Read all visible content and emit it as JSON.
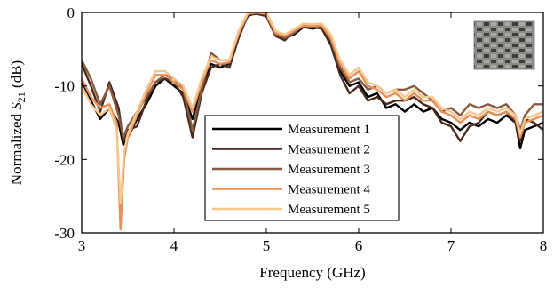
{
  "chart_data": {
    "type": "line",
    "xlabel": "Frequency (GHz)",
    "ylabel_main": "Normalized ",
    "ylabel_symbol": "S",
    "ylabel_subscript": "21",
    "ylabel_unit": " (dB)",
    "xlim": [
      3,
      8
    ],
    "ylim": [
      -30,
      0
    ],
    "xticks": [
      3,
      4,
      5,
      6,
      7,
      8
    ],
    "yticks": [
      0,
      -10,
      -20,
      -30
    ],
    "grid": false,
    "legend_position": "bottom-center",
    "inset_image": "woven-fabric-sample-photo",
    "series": [
      {
        "name": "Measurement 1",
        "color": "#000000",
        "points": [
          [
            3,
            -9.5
          ],
          [
            3.1,
            -12
          ],
          [
            3.2,
            -14.5
          ],
          [
            3.3,
            -13
          ],
          [
            3.4,
            -15
          ],
          [
            3.45,
            -18
          ],
          [
            3.5,
            -17
          ],
          [
            3.6,
            -14.5
          ],
          [
            3.7,
            -12.5
          ],
          [
            3.8,
            -10
          ],
          [
            3.9,
            -9
          ],
          [
            4.0,
            -10
          ],
          [
            4.1,
            -11
          ],
          [
            4.2,
            -14.5
          ],
          [
            4.3,
            -10
          ],
          [
            4.4,
            -7
          ],
          [
            4.5,
            -7.5
          ],
          [
            4.6,
            -7
          ],
          [
            4.7,
            -3
          ],
          [
            4.8,
            -0.5
          ],
          [
            4.9,
            0
          ],
          [
            5.0,
            -0.2
          ],
          [
            5.1,
            -3
          ],
          [
            5.2,
            -3.5
          ],
          [
            5.3,
            -3
          ],
          [
            5.4,
            -2
          ],
          [
            5.5,
            -2.2
          ],
          [
            5.6,
            -2
          ],
          [
            5.7,
            -4
          ],
          [
            5.8,
            -8
          ],
          [
            5.9,
            -10
          ],
          [
            6.0,
            -9.5
          ],
          [
            6.1,
            -11.5
          ],
          [
            6.2,
            -11
          ],
          [
            6.3,
            -13
          ],
          [
            6.4,
            -12.5
          ],
          [
            6.5,
            -13.5
          ],
          [
            6.6,
            -12.5
          ],
          [
            6.7,
            -13.5
          ],
          [
            6.8,
            -13
          ],
          [
            6.9,
            -14.5
          ],
          [
            7.0,
            -15
          ],
          [
            7.1,
            -16
          ],
          [
            7.2,
            -15
          ],
          [
            7.3,
            -15.5
          ],
          [
            7.4,
            -14.5
          ],
          [
            7.5,
            -15
          ],
          [
            7.6,
            -14
          ],
          [
            7.7,
            -15
          ],
          [
            7.75,
            -18.5
          ],
          [
            7.8,
            -16
          ],
          [
            7.9,
            -15.5
          ],
          [
            8.0,
            -15
          ]
        ]
      },
      {
        "name": "Measurement 2",
        "color": "#4a2a1c",
        "points": [
          [
            3,
            -7
          ],
          [
            3.1,
            -10
          ],
          [
            3.2,
            -13.5
          ],
          [
            3.3,
            -9.5
          ],
          [
            3.4,
            -13
          ],
          [
            3.45,
            -17.5
          ],
          [
            3.5,
            -16
          ],
          [
            3.6,
            -15.5
          ],
          [
            3.7,
            -12
          ],
          [
            3.8,
            -9.5
          ],
          [
            3.9,
            -9
          ],
          [
            4.0,
            -9.5
          ],
          [
            4.1,
            -11.5
          ],
          [
            4.2,
            -17
          ],
          [
            4.3,
            -11
          ],
          [
            4.4,
            -7.5
          ],
          [
            4.5,
            -7
          ],
          [
            4.6,
            -7.5
          ],
          [
            4.7,
            -3.5
          ],
          [
            4.8,
            -0.3
          ],
          [
            4.9,
            -0.2
          ],
          [
            5.0,
            -0.5
          ],
          [
            5.1,
            -3.2
          ],
          [
            5.2,
            -3.8
          ],
          [
            5.3,
            -2.5
          ],
          [
            5.4,
            -1.8
          ],
          [
            5.5,
            -2
          ],
          [
            5.6,
            -2.2
          ],
          [
            5.7,
            -4.5
          ],
          [
            5.8,
            -8.5
          ],
          [
            5.9,
            -11
          ],
          [
            6.0,
            -10
          ],
          [
            6.1,
            -12
          ],
          [
            6.2,
            -11.5
          ],
          [
            6.3,
            -12.5
          ],
          [
            6.4,
            -12
          ],
          [
            6.5,
            -12
          ],
          [
            6.6,
            -11.5
          ],
          [
            6.7,
            -12.5
          ],
          [
            6.8,
            -13
          ],
          [
            6.9,
            -15
          ],
          [
            7.0,
            -15.5
          ],
          [
            7.1,
            -17.5
          ],
          [
            7.2,
            -15.5
          ],
          [
            7.3,
            -15
          ],
          [
            7.4,
            -13.5
          ],
          [
            7.5,
            -14
          ],
          [
            7.6,
            -13.5
          ],
          [
            7.7,
            -15
          ],
          [
            7.75,
            -17.5
          ],
          [
            7.8,
            -14.5
          ],
          [
            7.9,
            -15
          ],
          [
            8.0,
            -16
          ]
        ]
      },
      {
        "name": "Measurement 3",
        "color": "#8a5a40",
        "points": [
          [
            3,
            -6.5
          ],
          [
            3.1,
            -9
          ],
          [
            3.2,
            -12.5
          ],
          [
            3.3,
            -10
          ],
          [
            3.4,
            -14
          ],
          [
            3.45,
            -17
          ],
          [
            3.5,
            -15.5
          ],
          [
            3.6,
            -13.5
          ],
          [
            3.7,
            -11.5
          ],
          [
            3.8,
            -9.5
          ],
          [
            3.9,
            -8.5
          ],
          [
            4.0,
            -9
          ],
          [
            4.1,
            -10.5
          ],
          [
            4.2,
            -16
          ],
          [
            4.3,
            -10.5
          ],
          [
            4.4,
            -5.5
          ],
          [
            4.5,
            -6.5
          ],
          [
            4.6,
            -6.5
          ],
          [
            4.7,
            -3
          ],
          [
            4.8,
            -0.2
          ],
          [
            4.9,
            0
          ],
          [
            5.0,
            -0.3
          ],
          [
            5.1,
            -3
          ],
          [
            5.2,
            -3.5
          ],
          [
            5.3,
            -2.8
          ],
          [
            5.4,
            -1.8
          ],
          [
            5.5,
            -2
          ],
          [
            5.6,
            -1.8
          ],
          [
            5.7,
            -3.8
          ],
          [
            5.8,
            -7.5
          ],
          [
            5.9,
            -9.5
          ],
          [
            6.0,
            -9
          ],
          [
            6.1,
            -10.5
          ],
          [
            6.2,
            -10
          ],
          [
            6.3,
            -11
          ],
          [
            6.4,
            -10.5
          ],
          [
            6.5,
            -10.5
          ],
          [
            6.6,
            -10
          ],
          [
            6.7,
            -11
          ],
          [
            6.8,
            -12
          ],
          [
            6.9,
            -13.5
          ],
          [
            7.0,
            -13
          ],
          [
            7.1,
            -14
          ],
          [
            7.2,
            -12.5
          ],
          [
            7.3,
            -13
          ],
          [
            7.4,
            -12.5
          ],
          [
            7.5,
            -13
          ],
          [
            7.6,
            -12.5
          ],
          [
            7.7,
            -14
          ],
          [
            7.75,
            -16
          ],
          [
            7.8,
            -14
          ],
          [
            7.9,
            -12.5
          ],
          [
            8.0,
            -12.5
          ]
        ]
      },
      {
        "name": "Measurement 4",
        "color": "#e89058",
        "points": [
          [
            3,
            -9
          ],
          [
            3.1,
            -11.5
          ],
          [
            3.2,
            -13
          ],
          [
            3.3,
            -12.5
          ],
          [
            3.38,
            -15
          ],
          [
            3.42,
            -29.5
          ],
          [
            3.46,
            -20
          ],
          [
            3.5,
            -17
          ],
          [
            3.6,
            -14
          ],
          [
            3.7,
            -11
          ],
          [
            3.8,
            -8.5
          ],
          [
            3.9,
            -8.5
          ],
          [
            4.0,
            -9.5
          ],
          [
            4.1,
            -10.5
          ],
          [
            4.2,
            -13.5
          ],
          [
            4.3,
            -9.5
          ],
          [
            4.4,
            -6.5
          ],
          [
            4.5,
            -7
          ],
          [
            4.6,
            -6.8
          ],
          [
            4.7,
            -2.8
          ],
          [
            4.8,
            -0.2
          ],
          [
            4.9,
            0
          ],
          [
            5.0,
            -0.2
          ],
          [
            5.1,
            -2.8
          ],
          [
            5.2,
            -3.2
          ],
          [
            5.3,
            -2.5
          ],
          [
            5.4,
            -1.8
          ],
          [
            5.5,
            -1.8
          ],
          [
            5.6,
            -1.8
          ],
          [
            5.7,
            -3.5
          ],
          [
            5.8,
            -7
          ],
          [
            5.9,
            -9
          ],
          [
            6.0,
            -8
          ],
          [
            6.1,
            -10
          ],
          [
            6.2,
            -10.5
          ],
          [
            6.3,
            -11.5
          ],
          [
            6.4,
            -11
          ],
          [
            6.5,
            -12
          ],
          [
            6.6,
            -11
          ],
          [
            6.7,
            -12
          ],
          [
            6.8,
            -12
          ],
          [
            6.9,
            -13.5
          ],
          [
            7.0,
            -14
          ],
          [
            7.1,
            -15
          ],
          [
            7.2,
            -14
          ],
          [
            7.3,
            -14.5
          ],
          [
            7.4,
            -13.5
          ],
          [
            7.5,
            -14
          ],
          [
            7.6,
            -13.5
          ],
          [
            7.7,
            -14.5
          ],
          [
            7.75,
            -17
          ],
          [
            7.8,
            -15
          ],
          [
            7.9,
            -14.5
          ],
          [
            8.0,
            -14
          ]
        ]
      },
      {
        "name": "Measurement 5",
        "color": "#f6c890",
        "points": [
          [
            3,
            -10
          ],
          [
            3.1,
            -12.5
          ],
          [
            3.2,
            -14
          ],
          [
            3.3,
            -13
          ],
          [
            3.38,
            -16
          ],
          [
            3.42,
            -26
          ],
          [
            3.46,
            -19
          ],
          [
            3.5,
            -16.5
          ],
          [
            3.6,
            -13.5
          ],
          [
            3.7,
            -10.5
          ],
          [
            3.8,
            -8
          ],
          [
            3.9,
            -8
          ],
          [
            4.0,
            -9
          ],
          [
            4.1,
            -10
          ],
          [
            4.2,
            -13
          ],
          [
            4.3,
            -9
          ],
          [
            4.4,
            -6
          ],
          [
            4.5,
            -6.5
          ],
          [
            4.6,
            -6.5
          ],
          [
            4.7,
            -2.5
          ],
          [
            4.8,
            0
          ],
          [
            4.9,
            0
          ],
          [
            5.0,
            0
          ],
          [
            5.1,
            -2.5
          ],
          [
            5.2,
            -3
          ],
          [
            5.3,
            -2.3
          ],
          [
            5.4,
            -1.5
          ],
          [
            5.5,
            -1.6
          ],
          [
            5.6,
            -1.5
          ],
          [
            5.7,
            -3
          ],
          [
            5.8,
            -6.5
          ],
          [
            5.9,
            -8.5
          ],
          [
            6.0,
            -7.5
          ],
          [
            6.1,
            -9.5
          ],
          [
            6.2,
            -10
          ],
          [
            6.3,
            -11
          ],
          [
            6.4,
            -10.5
          ],
          [
            6.5,
            -11.5
          ],
          [
            6.6,
            -10.5
          ],
          [
            6.7,
            -11.5
          ],
          [
            6.8,
            -11.5
          ],
          [
            6.9,
            -13
          ],
          [
            7.0,
            -13.5
          ],
          [
            7.1,
            -14.5
          ],
          [
            7.2,
            -13.5
          ],
          [
            7.3,
            -14
          ],
          [
            7.4,
            -13
          ],
          [
            7.5,
            -13.5
          ],
          [
            7.6,
            -13
          ],
          [
            7.7,
            -14
          ],
          [
            7.75,
            -16.5
          ],
          [
            7.8,
            -14.5
          ],
          [
            7.9,
            -14
          ],
          [
            8.0,
            -13.5
          ]
        ]
      }
    ]
  }
}
